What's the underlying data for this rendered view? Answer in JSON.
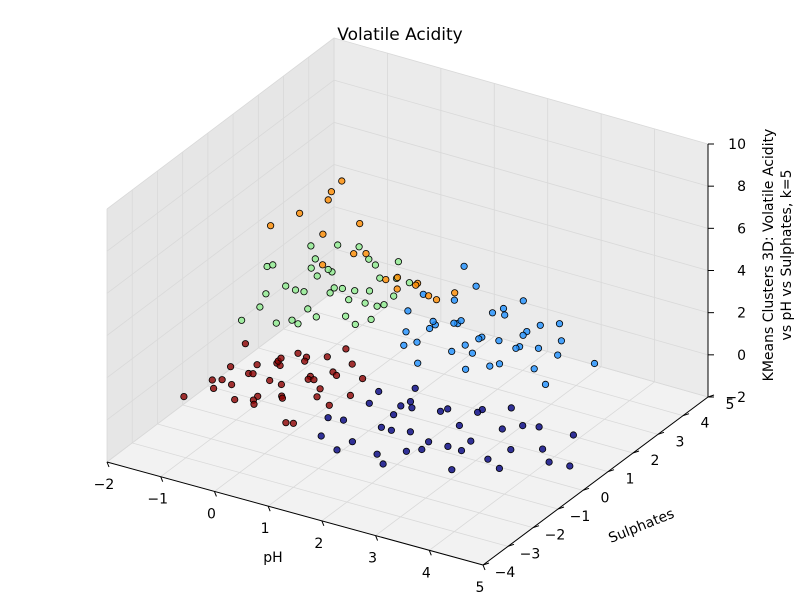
{
  "chart_data": {
    "type": "scatter",
    "title": "Volatile Acidity",
    "xlabel": "pH",
    "ylabel": "Sulphates",
    "zlabel_line1": "KMeans Clusters 3D: Volatile Acidity",
    "zlabel_line2": "vs pH vs Sulphates, k=5",
    "xlim": [
      -2,
      5
    ],
    "ylim": [
      -4,
      5
    ],
    "zlim": [
      -2,
      10
    ],
    "x_ticks": [
      "−2",
      "−1",
      "0",
      "1",
      "2",
      "3",
      "4",
      "5"
    ],
    "y_ticks": [
      "−4",
      "−3",
      "−2",
      "−1",
      "0",
      "1",
      "2",
      "3",
      "4",
      "5"
    ],
    "z_ticks": [
      "−2",
      "0",
      "2",
      "4",
      "6",
      "8",
      "10"
    ],
    "grid": true,
    "series": [
      {
        "color": "#8b0000",
        "points": [
          [
            -1.4,
            -1.1,
            -0.3
          ],
          [
            -1.2,
            -0.8,
            0.2
          ],
          [
            -1.1,
            -0.3,
            -0.5
          ],
          [
            -0.9,
            -1.4,
            0.1
          ],
          [
            -0.8,
            -0.6,
            0.4
          ],
          [
            -0.7,
            0.1,
            -0.2
          ],
          [
            -0.6,
            -1.0,
            -0.6
          ],
          [
            -0.5,
            -0.4,
            0.6
          ],
          [
            -0.4,
            -1.6,
            -0.1
          ],
          [
            -0.3,
            0.3,
            0.3
          ],
          [
            -0.2,
            -0.9,
            -0.4
          ],
          [
            -0.1,
            -0.2,
            0.7
          ],
          [
            0.0,
            -1.3,
            0.0
          ],
          [
            0.1,
            0.5,
            -0.3
          ],
          [
            0.2,
            -0.7,
            0.5
          ],
          [
            0.3,
            -1.8,
            -0.5
          ],
          [
            0.4,
            0.0,
            0.2
          ],
          [
            0.5,
            -0.5,
            -0.7
          ],
          [
            0.6,
            -1.2,
            0.4
          ],
          [
            0.7,
            0.4,
            -0.1
          ],
          [
            -1.0,
            -1.9,
            0.3
          ],
          [
            -0.6,
            0.6,
            0.0
          ],
          [
            -0.2,
            -2.0,
            0.2
          ],
          [
            0.2,
            0.8,
            0.6
          ],
          [
            -0.8,
            -0.1,
            -0.8
          ],
          [
            -0.4,
            -0.5,
            0.9
          ],
          [
            0.0,
            0.2,
            -0.9
          ],
          [
            0.4,
            -0.9,
            0.8
          ],
          [
            -1.3,
            0.0,
            0.5
          ],
          [
            -0.9,
            0.4,
            -0.5
          ],
          [
            0.8,
            -0.3,
            -0.2
          ],
          [
            -0.5,
            -1.4,
            0.9
          ],
          [
            -0.1,
            0.7,
            0.1
          ],
          [
            0.3,
            -1.5,
            -0.8
          ],
          [
            -0.7,
            -1.7,
            -0.2
          ],
          [
            0.6,
            0.2,
            0.7
          ],
          [
            -1.5,
            -0.5,
            -0.9
          ],
          [
            -0.3,
            -0.7,
            -0.1
          ],
          [
            0.1,
            -0.4,
            0.3
          ],
          [
            -1.6,
            -1.8,
            -0.6
          ]
        ]
      },
      {
        "color": "#000080",
        "points": [
          [
            1.0,
            -1.0,
            -0.6
          ],
          [
            1.2,
            -0.4,
            -0.2
          ],
          [
            1.4,
            -1.5,
            -0.9
          ],
          [
            1.6,
            0.0,
            -0.4
          ],
          [
            1.8,
            -0.8,
            -0.7
          ],
          [
            2.0,
            -1.8,
            -0.8
          ],
          [
            2.2,
            0.3,
            -0.5
          ],
          [
            2.4,
            -0.6,
            -1.0
          ],
          [
            2.6,
            -1.3,
            -0.6
          ],
          [
            2.8,
            0.5,
            -0.3
          ],
          [
            3.0,
            -0.2,
            -0.9
          ],
          [
            3.2,
            -1.0,
            -0.5
          ],
          [
            1.1,
            -2.1,
            -0.3
          ],
          [
            1.5,
            0.6,
            -0.8
          ],
          [
            1.9,
            -0.2,
            -0.1
          ],
          [
            2.3,
            -2.2,
            -0.7
          ],
          [
            2.7,
            0.9,
            -0.6
          ],
          [
            3.4,
            0.2,
            -0.4
          ],
          [
            3.6,
            -0.8,
            -0.8
          ],
          [
            3.9,
            0.6,
            -0.3
          ],
          [
            4.2,
            0.1,
            -0.7
          ],
          [
            4.6,
            -0.5,
            -0.5
          ],
          [
            1.3,
            -1.9,
            -1.0
          ],
          [
            1.7,
            -0.5,
            -0.3
          ],
          [
            2.1,
            0.8,
            -0.9
          ],
          [
            2.5,
            -1.7,
            -0.4
          ],
          [
            2.9,
            -0.9,
            -0.6
          ],
          [
            3.3,
            -1.6,
            -0.8
          ],
          [
            3.7,
            -0.1,
            -0.9
          ],
          [
            4.0,
            -1.2,
            -0.6
          ],
          [
            1.0,
            0.4,
            -0.5
          ],
          [
            0.9,
            -1.4,
            -0.2
          ],
          [
            1.4,
            1.0,
            -0.6
          ],
          [
            1.8,
            -1.2,
            -0.2
          ],
          [
            2.2,
            -0.9,
            -0.4
          ],
          [
            2.6,
            0.2,
            -0.8
          ],
          [
            3.1,
            1.2,
            -0.5
          ],
          [
            3.5,
            0.8,
            -0.7
          ],
          [
            4.4,
            0.9,
            -0.6
          ],
          [
            4.8,
            -0.1,
            -0.9
          ]
        ]
      },
      {
        "color": "#1e90ff",
        "points": [
          [
            1.0,
            1.4,
            0.8
          ],
          [
            1.2,
            2.0,
            1.2
          ],
          [
            1.4,
            1.1,
            0.5
          ],
          [
            1.6,
            2.4,
            1.5
          ],
          [
            1.8,
            1.6,
            0.9
          ],
          [
            2.0,
            2.8,
            1.8
          ],
          [
            2.2,
            1.3,
            0.6
          ],
          [
            2.4,
            2.2,
            1.3
          ],
          [
            2.6,
            1.8,
            0.7
          ],
          [
            2.8,
            3.0,
            1.6
          ],
          [
            3.0,
            2.5,
            1.1
          ],
          [
            3.2,
            1.9,
            0.8
          ],
          [
            0.8,
            2.6,
            2.0
          ],
          [
            1.1,
            3.2,
            1.4
          ],
          [
            1.5,
            1.5,
            2.2
          ],
          [
            1.9,
            3.5,
            1.0
          ],
          [
            2.3,
            2.6,
            2.4
          ],
          [
            2.7,
            1.2,
            1.2
          ],
          [
            3.1,
            3.2,
            0.9
          ],
          [
            3.5,
            2.2,
            1.4
          ],
          [
            1.3,
            2.9,
            0.7
          ],
          [
            1.7,
            1.9,
            1.9
          ],
          [
            2.1,
            1.5,
            1.5
          ],
          [
            2.5,
            3.1,
            1.0
          ],
          [
            2.9,
            2.1,
            2.0
          ],
          [
            0.9,
            1.7,
            1.1
          ],
          [
            1.6,
            3.0,
            2.6
          ],
          [
            2.0,
            2.0,
            0.6
          ],
          [
            3.6,
            1.5,
            0.7
          ],
          [
            4.0,
            2.6,
            1.0
          ],
          [
            1.0,
            3.8,
            2.4
          ],
          [
            1.4,
            1.8,
            1.7
          ],
          [
            1.8,
            2.8,
            0.5
          ],
          [
            2.2,
            3.6,
            1.8
          ],
          [
            2.6,
            2.6,
            0.8
          ],
          [
            3.0,
            1.6,
            1.9
          ],
          [
            0.7,
            2.2,
            1.5
          ],
          [
            1.2,
            1.5,
            1.0
          ],
          [
            3.3,
            2.7,
            2.3
          ],
          [
            2.4,
            1.4,
            2.1
          ]
        ]
      },
      {
        "color": "#90ee90",
        "points": [
          [
            -1.5,
            1.0,
            1.2
          ],
          [
            -1.3,
            1.6,
            1.8
          ],
          [
            -1.1,
            0.8,
            0.9
          ],
          [
            -0.9,
            2.0,
            2.2
          ],
          [
            -0.7,
            1.2,
            1.5
          ],
          [
            -0.5,
            2.4,
            1.0
          ],
          [
            -0.3,
            1.4,
            2.6
          ],
          [
            -0.1,
            2.2,
            1.3
          ],
          [
            0.1,
            1.0,
            1.9
          ],
          [
            0.3,
            2.6,
            2.4
          ],
          [
            -1.4,
            2.2,
            1.0
          ],
          [
            -1.0,
            2.8,
            1.6
          ],
          [
            -0.6,
            1.8,
            2.9
          ],
          [
            -0.2,
            3.0,
            1.7
          ],
          [
            0.2,
            1.8,
            1.1
          ],
          [
            0.4,
            2.9,
            2.0
          ],
          [
            -1.2,
            0.6,
            2.4
          ],
          [
            -0.8,
            2.6,
            3.2
          ],
          [
            -0.4,
            0.9,
            1.6
          ],
          [
            0.0,
            2.4,
            3.0
          ],
          [
            -1.6,
            1.5,
            2.6
          ],
          [
            -0.9,
            1.0,
            1.0
          ],
          [
            -0.5,
            3.2,
            2.2
          ],
          [
            -0.1,
            1.3,
            2.8
          ],
          [
            0.3,
            2.1,
            1.6
          ],
          [
            -1.3,
            2.6,
            2.8
          ],
          [
            -0.7,
            1.5,
            3.6
          ],
          [
            -0.3,
            2.8,
            1.2
          ],
          [
            0.1,
            3.1,
            2.6
          ],
          [
            -1.1,
            1.9,
            1.4
          ],
          [
            -1.7,
            0.7,
            0.7
          ],
          [
            -0.6,
            0.6,
            1.4
          ],
          [
            0.0,
            1.6,
            0.9
          ],
          [
            0.5,
            1.4,
            2.3
          ],
          [
            -0.2,
            2.0,
            2.0
          ],
          [
            -1.4,
            1.3,
            3.0
          ],
          [
            -0.8,
            2.3,
            1.2
          ],
          [
            -0.4,
            2.6,
            3.4
          ],
          [
            0.2,
            2.7,
            1.4
          ],
          [
            -1.2,
            2.4,
            2.0
          ]
        ]
      },
      {
        "color": "#ff8c00",
        "points": [
          [
            -0.6,
            1.8,
            6.2
          ],
          [
            -0.3,
            1.7,
            7.4
          ],
          [
            -0.4,
            1.5,
            7.0
          ],
          [
            -0.9,
            1.3,
            5.8
          ],
          [
            -1.3,
            1.0,
            5.2
          ],
          [
            -0.2,
            2.2,
            5.0
          ],
          [
            -0.7,
            1.8,
            4.5
          ],
          [
            0.2,
            1.6,
            4.4
          ],
          [
            0.6,
            2.0,
            3.2
          ],
          [
            0.5,
            2.2,
            2.4
          ],
          [
            -0.8,
            2.0,
            2.8
          ],
          [
            0.1,
            2.6,
            2.2
          ],
          [
            0.8,
            2.3,
            2.7
          ],
          [
            -0.5,
            2.6,
            3.0
          ],
          [
            0.9,
            2.6,
            2.0
          ],
          [
            0.6,
            2.8,
            2.2
          ],
          [
            1.0,
            2.7,
            1.8
          ],
          [
            1.2,
            3.0,
            2.0
          ]
        ]
      }
    ]
  }
}
